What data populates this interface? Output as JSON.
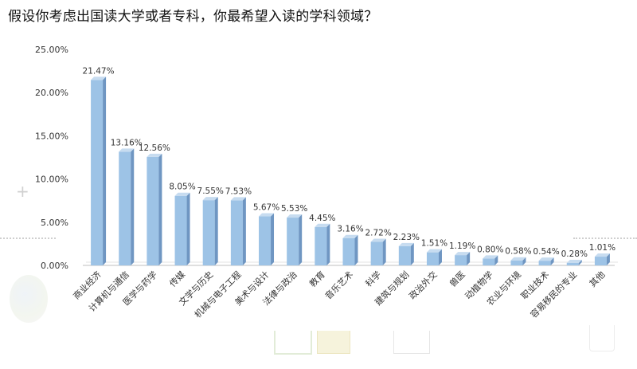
{
  "page": {
    "title": "假设你考虑出国读大学或者专科，你最希望入读的学科领域？"
  },
  "chart_data": {
    "type": "bar",
    "title": "",
    "xlabel": "",
    "ylabel": "",
    "ylim": [
      0,
      25
    ],
    "yticks": [
      "0.00%",
      "5.00%",
      "10.00%",
      "15.00%",
      "20.00%",
      "25.00%"
    ],
    "ytick_values": [
      0,
      5,
      10,
      15,
      20,
      25
    ],
    "grid": false,
    "legend": "none",
    "categories": [
      "商业经济",
      "计算机与通信",
      "医学与药学",
      "传媒",
      "文学与历史",
      "机械与电子工程",
      "美术与设计",
      "法律与政治",
      "教育",
      "音乐艺术",
      "科学",
      "建筑与规划",
      "政治外交",
      "兽医",
      "动植物学",
      "农业与环境",
      "职业技术",
      "容易移民的专业",
      "其他"
    ],
    "values": [
      21.47,
      13.16,
      12.56,
      8.05,
      7.55,
      7.53,
      5.67,
      5.53,
      4.45,
      3.16,
      2.72,
      2.23,
      1.51,
      1.19,
      0.8,
      0.58,
      0.54,
      0.28,
      1.01
    ],
    "labels": [
      "21.47%",
      "13.16%",
      "12.56%",
      "8.05%",
      "7.55%",
      "7.53%",
      "5.67%",
      "5.53%",
      "4.45%",
      "3.16%",
      "2.72%",
      "2.23%",
      "1.51%",
      "1.19%",
      "0.80%",
      "0.58%",
      "0.54%",
      "0.28%",
      "1.01%"
    ],
    "colors": {
      "bar_front": "#9dc3e6",
      "bar_side": "#6f96c2",
      "bar_top": "#c7dcf0",
      "axis": "#bfbfbf",
      "text": "#333333"
    }
  }
}
